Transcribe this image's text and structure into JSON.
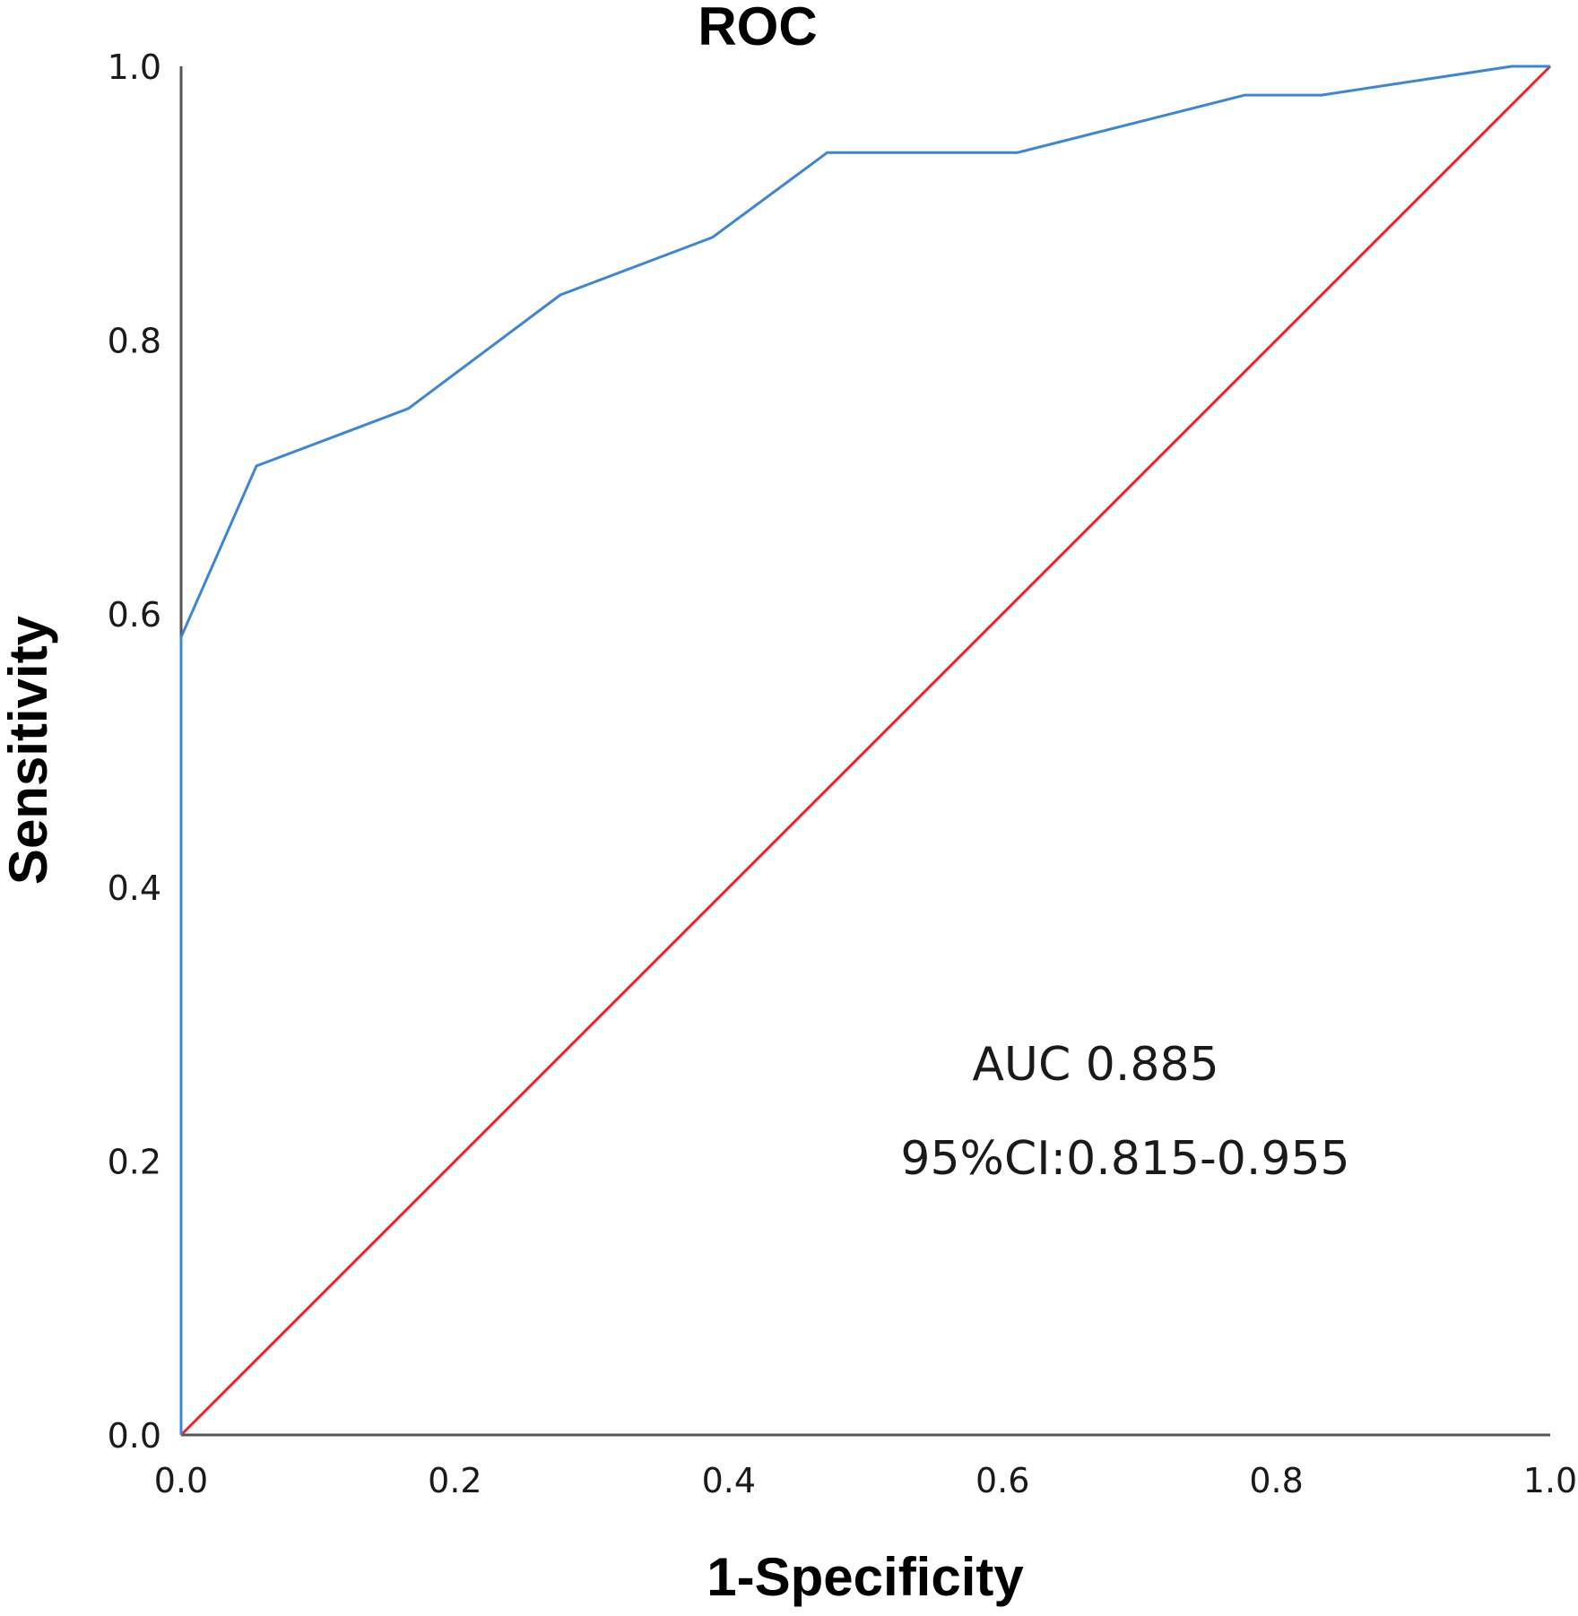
{
  "chart_data": {
    "type": "line",
    "title": "ROC",
    "xlabel": "1-Specificity",
    "ylabel": "Sensitivity",
    "xlim": [
      0,
      1
    ],
    "ylim": [
      0,
      1
    ],
    "xticks": [
      "0.0",
      "0.2",
      "0.4",
      "0.6",
      "0.8",
      "1.0"
    ],
    "yticks": [
      "0.0",
      "0.2",
      "0.4",
      "0.6",
      "0.8",
      "1.0"
    ],
    "grid": false,
    "series": [
      {
        "color": "#3d86d6",
        "x": [
          0.0,
          0.0,
          0.055,
          0.166,
          0.277,
          0.388,
          0.472,
          0.611,
          0.777,
          0.833,
          0.972,
          1.0
        ],
        "y": [
          0.0,
          0.583,
          0.708,
          0.75,
          0.833,
          0.875,
          0.937,
          0.937,
          0.979,
          0.979,
          1.0,
          1.0
        ]
      },
      {
        "color": "#e8262a",
        "x": [
          0.0,
          1.0
        ],
        "y": [
          0.0,
          1.0
        ]
      }
    ],
    "annotations": [
      "AUC 0.885",
      "95%CI:0.815-0.955"
    ]
  }
}
